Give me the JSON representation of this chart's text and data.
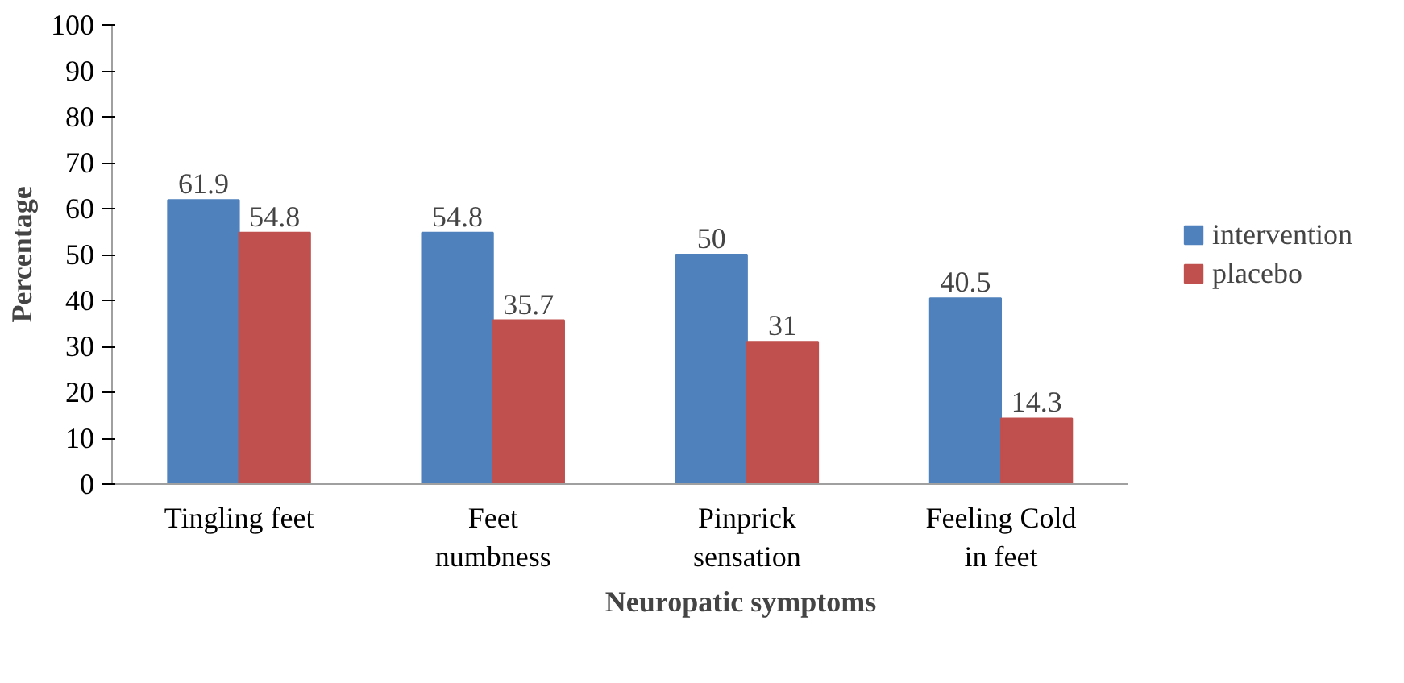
{
  "chart_data": {
    "type": "bar",
    "xlabel": "Neuropatic symptoms",
    "ylabel": "Percentage",
    "categories": [
      "Tingling feet",
      "Feet\nnumbness",
      "Pinprick\nsensation",
      "Feeling Cold\nin feet"
    ],
    "series": [
      {
        "name": "intervention",
        "color": "#4f81bd",
        "values": [
          61.9,
          54.8,
          50,
          40.5
        ]
      },
      {
        "name": "placebo",
        "color": "#c0504d",
        "values": [
          54.8,
          35.7,
          31,
          14.3
        ]
      }
    ],
    "ylim": [
      0,
      100
    ],
    "yticks": [
      0,
      10,
      20,
      30,
      40,
      50,
      60,
      70,
      80,
      90,
      100
    ],
    "data_labels": true,
    "legend": "right"
  }
}
